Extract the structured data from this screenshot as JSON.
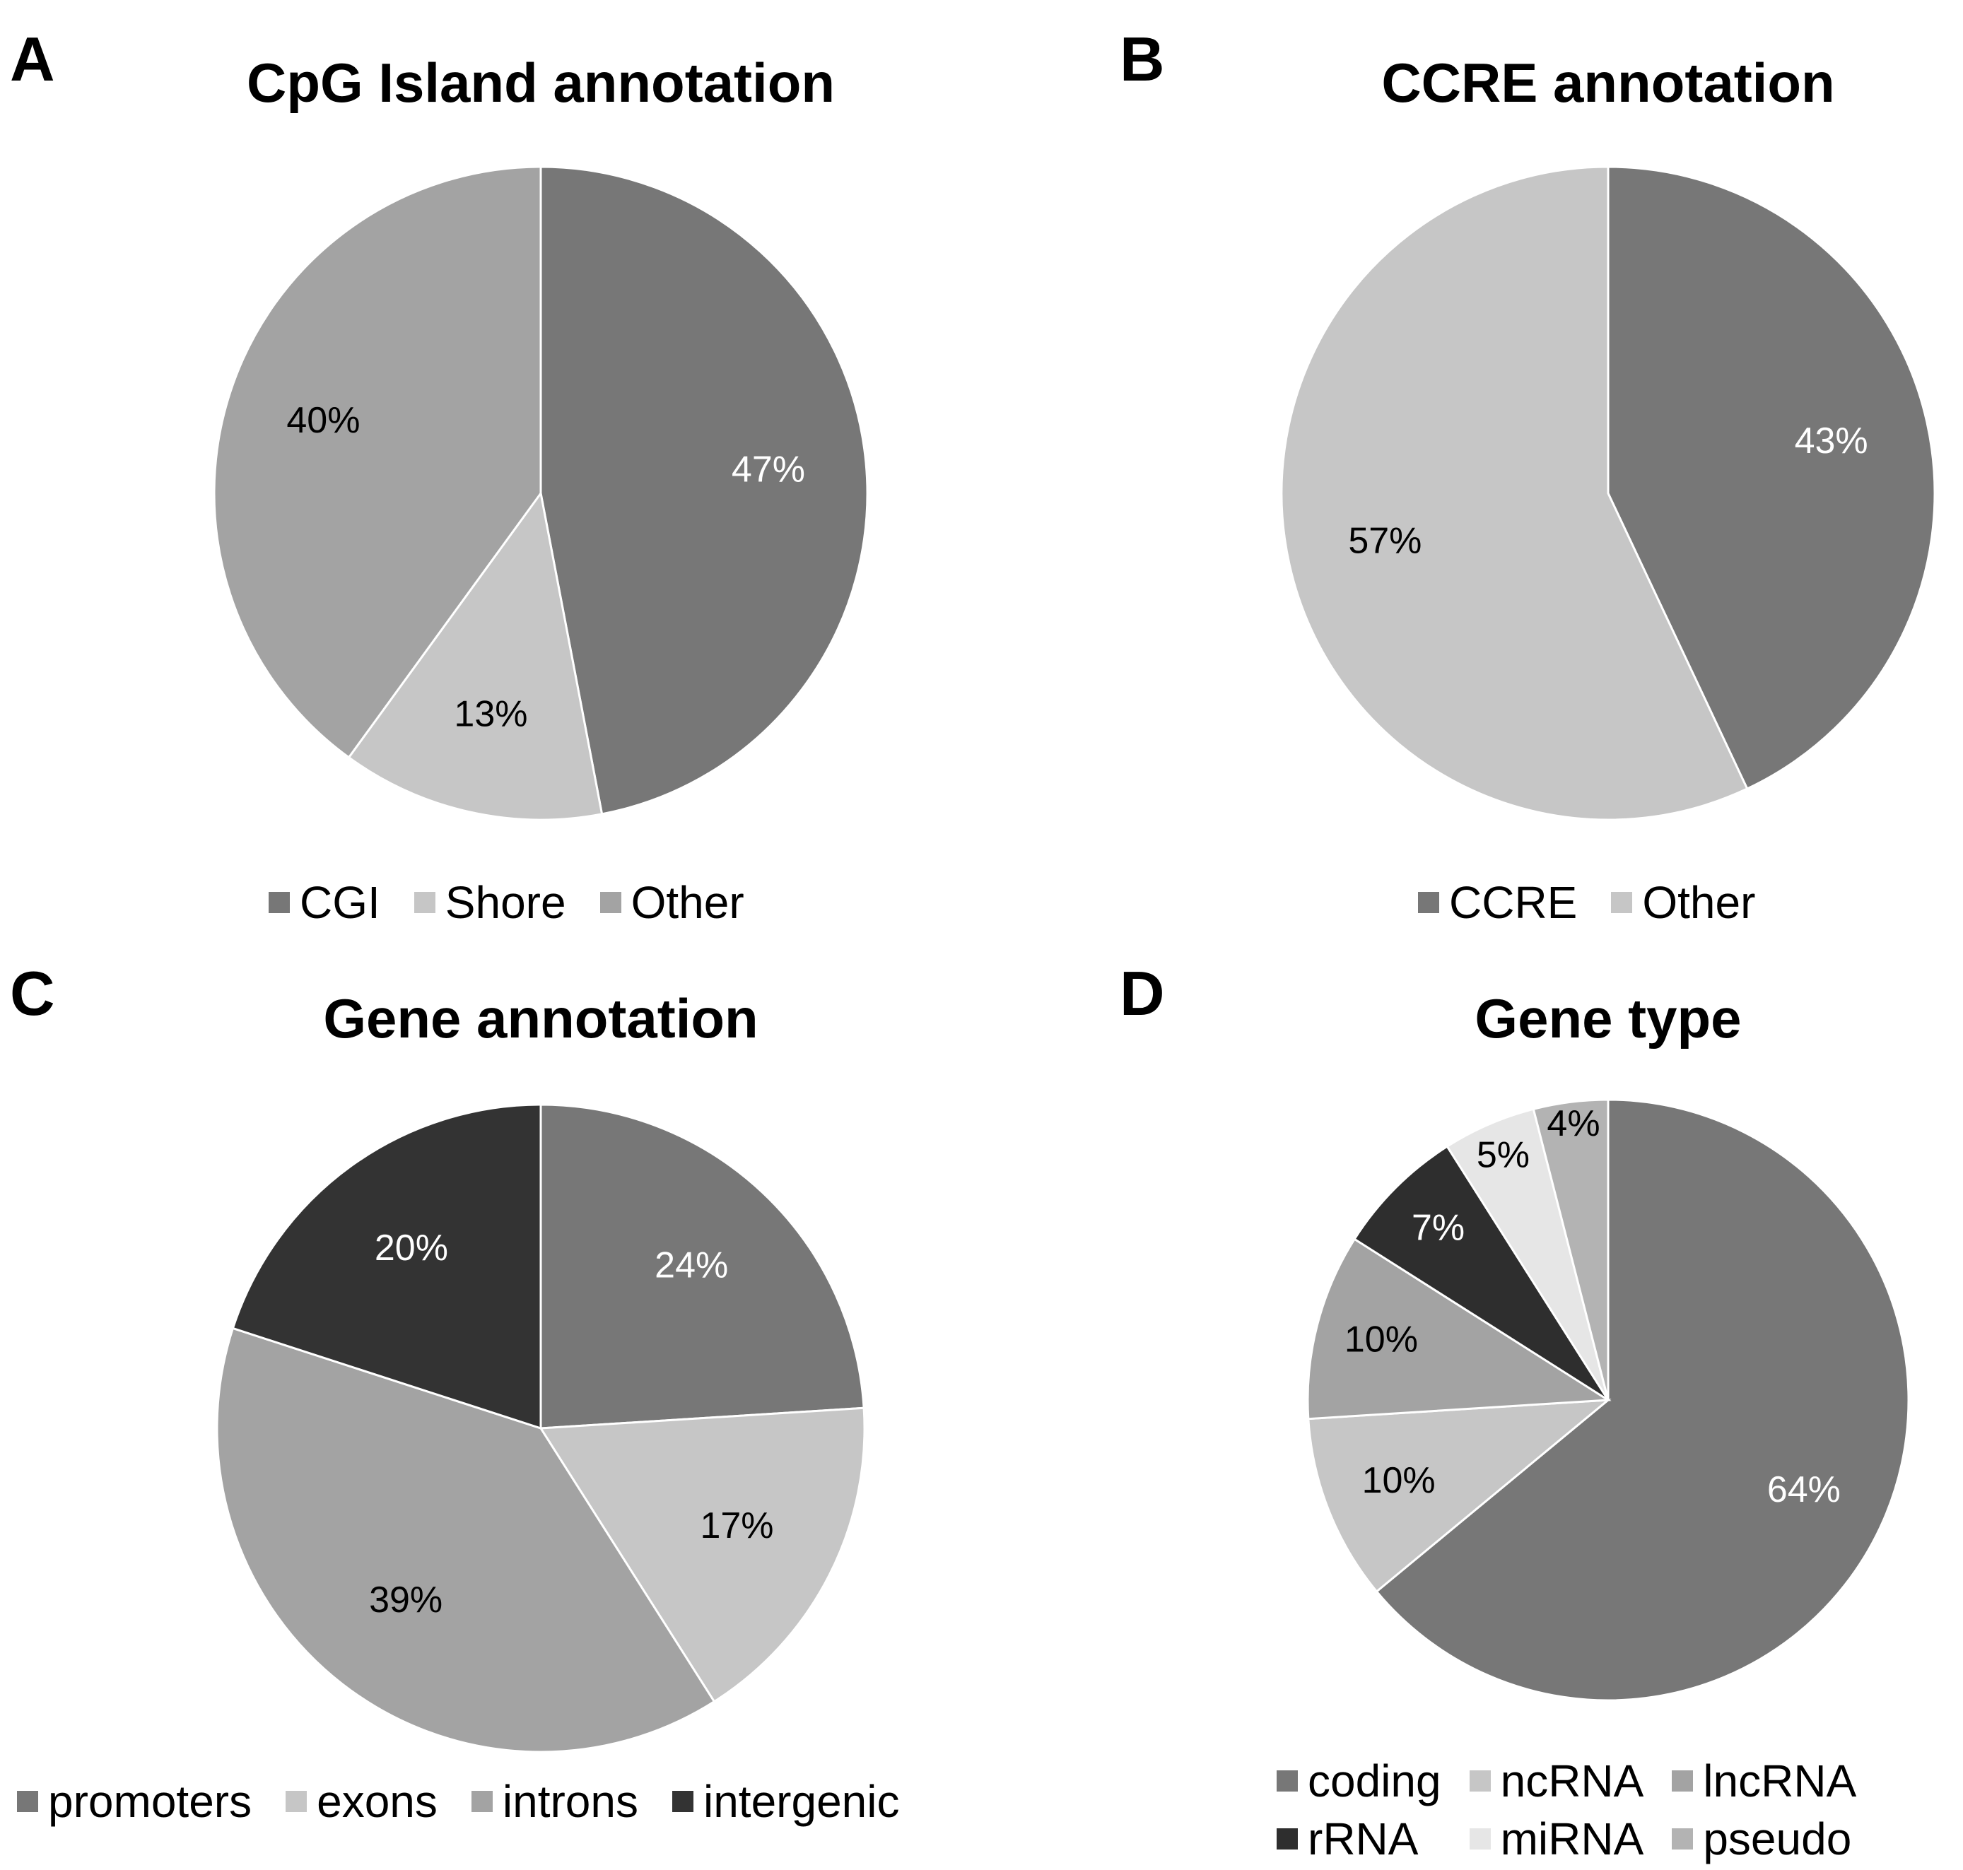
{
  "chart_data": [
    {
      "type": "pie",
      "panel": "A",
      "title": "CpG Island annotation",
      "categories": [
        "CGI",
        "Shore",
        "Other"
      ],
      "values": [
        47,
        13,
        40
      ],
      "labels": [
        "47%",
        "13%",
        "40%"
      ],
      "colors": [
        "#777777",
        "#c6c6c6",
        "#a3a3a3"
      ],
      "label_colors": [
        "#ffffff",
        "#000000",
        "#000000"
      ],
      "legend": [
        "CGI",
        "Shore",
        "Other"
      ],
      "legend_position": "bottom"
    },
    {
      "type": "pie",
      "panel": "B",
      "title": "CCRE annotation",
      "categories": [
        "CCRE",
        "Other"
      ],
      "values": [
        43,
        57
      ],
      "labels": [
        "43%",
        "57%"
      ],
      "colors": [
        "#777777",
        "#c6c6c6"
      ],
      "label_colors": [
        "#ffffff",
        "#000000"
      ],
      "legend": [
        "CCRE",
        "Other"
      ],
      "legend_position": "bottom"
    },
    {
      "type": "pie",
      "panel": "C",
      "title": "Gene annotation",
      "categories": [
        "promoters",
        "exons",
        "introns",
        "intergenic"
      ],
      "values": [
        24,
        17,
        39,
        20
      ],
      "labels": [
        "24%",
        "17%",
        "39%",
        "20%"
      ],
      "colors": [
        "#777777",
        "#c6c6c6",
        "#a3a3a3",
        "#333333"
      ],
      "label_colors": [
        "#ffffff",
        "#000000",
        "#000000",
        "#ffffff"
      ],
      "legend": [
        "promoters",
        "exons",
        "introns",
        "intergenic"
      ],
      "legend_position": "bottom"
    },
    {
      "type": "pie",
      "panel": "D",
      "title": "Gene type",
      "categories": [
        "coding",
        "ncRNA",
        "lncRNA",
        "rRNA",
        "miRNA",
        "pseudo"
      ],
      "values": [
        64,
        10,
        10,
        7,
        5,
        4
      ],
      "labels": [
        "64%",
        "10%",
        "10%",
        "7%",
        "5%",
        "4%"
      ],
      "colors": [
        "#777777",
        "#c6c6c6",
        "#a3a3a3",
        "#2e2e2e",
        "#e6e6e6",
        "#b3b3b3"
      ],
      "label_colors": [
        "#ffffff",
        "#000000",
        "#000000",
        "#ffffff",
        "#000000",
        "#000000"
      ],
      "legend": [
        "coding",
        "ncRNA",
        "lncRNA",
        "rRNA",
        "miRNA",
        "pseudo"
      ],
      "legend_position": "bottom"
    }
  ]
}
